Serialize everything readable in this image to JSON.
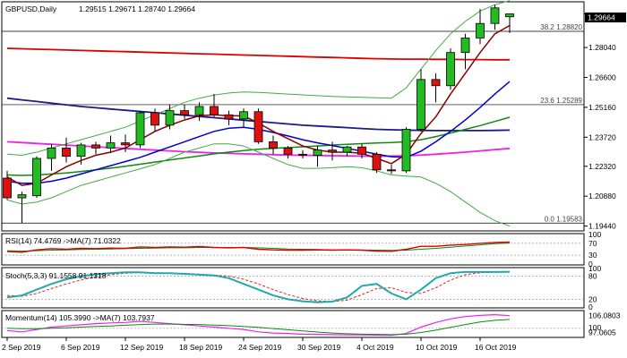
{
  "header": {
    "symbol": "GBPUSD,Daily",
    "ohlc": "1.29515 1.29671 1.28740 1.29664"
  },
  "price_tag": "1.29664",
  "colors": {
    "bull": "#22bb22",
    "bear": "#dd1111",
    "wick": "#000000",
    "ma_red": "#dd0000",
    "ma_blue": "#0000cc",
    "ma_navy": "#1a1a8c",
    "ma_green": "#118811",
    "ma_magenta": "#ee22ee",
    "ma_darkred": "#880000",
    "band": "#44aa44",
    "rsi_ma": "#118811",
    "stoch_main": "#22aaaa",
    "stoch_signal": "#dd2222",
    "mom": "#ee22ee",
    "mom_ma": "#118811",
    "fib_line": "#000000"
  },
  "chart_data": {
    "type": "candlestick",
    "title": "GBPUSD,Daily",
    "ylim": [
      1.1925,
      1.302
    ],
    "y_ticks": [
      1.2966,
      1.2804,
      1.266,
      1.2516,
      1.2372,
      1.2232,
      1.2088,
      1.1944
    ],
    "y_tick_labels": [
      "1.29664",
      "1.28040",
      "1.26600",
      "1.25160",
      "1.23720",
      "1.22320",
      "1.20880",
      "1.19440"
    ],
    "x_ticks": [
      {
        "index": 0,
        "label": "2 Sep 2019"
      },
      {
        "index": 4,
        "label": "6 Sep 2019"
      },
      {
        "index": 8,
        "label": "12 Sep 2019"
      },
      {
        "index": 12,
        "label": "18 Sep 2019"
      },
      {
        "index": 16,
        "label": "24 Sep 2019"
      },
      {
        "index": 20,
        "label": "30 Sep 2019"
      },
      {
        "index": 24,
        "label": "4 Oct 2019"
      },
      {
        "index": 28,
        "label": "10 Oct 2019"
      },
      {
        "index": 32,
        "label": "16 Oct 2019"
      }
    ],
    "candles": [
      {
        "o": 1.2175,
        "h": 1.221,
        "l": 1.207,
        "c": 1.208
      },
      {
        "o": 1.208,
        "h": 1.211,
        "l": 1.1958,
        "c": 1.2095
      },
      {
        "o": 1.209,
        "h": 1.228,
        "l": 1.208,
        "c": 1.227
      },
      {
        "o": 1.227,
        "h": 1.234,
        "l": 1.221,
        "c": 1.232
      },
      {
        "o": 1.232,
        "h": 1.237,
        "l": 1.225,
        "c": 1.228
      },
      {
        "o": 1.228,
        "h": 1.2345,
        "l": 1.224,
        "c": 1.2335
      },
      {
        "o": 1.2335,
        "h": 1.235,
        "l": 1.229,
        "c": 1.232
      },
      {
        "o": 1.232,
        "h": 1.238,
        "l": 1.2295,
        "c": 1.2345
      },
      {
        "o": 1.2345,
        "h": 1.2385,
        "l": 1.23,
        "c": 1.2335
      },
      {
        "o": 1.2335,
        "h": 1.25,
        "l": 1.232,
        "c": 1.249
      },
      {
        "o": 1.249,
        "h": 1.251,
        "l": 1.24,
        "c": 1.243
      },
      {
        "o": 1.243,
        "h": 1.253,
        "l": 1.241,
        "c": 1.25
      },
      {
        "o": 1.25,
        "h": 1.253,
        "l": 1.246,
        "c": 1.248
      },
      {
        "o": 1.248,
        "h": 1.254,
        "l": 1.245,
        "c": 1.252
      },
      {
        "o": 1.252,
        "h": 1.258,
        "l": 1.247,
        "c": 1.248
      },
      {
        "o": 1.248,
        "h": 1.25,
        "l": 1.243,
        "c": 1.246
      },
      {
        "o": 1.246,
        "h": 1.251,
        "l": 1.242,
        "c": 1.2495
      },
      {
        "o": 1.2495,
        "h": 1.251,
        "l": 1.234,
        "c": 1.235
      },
      {
        "o": 1.235,
        "h": 1.238,
        "l": 1.229,
        "c": 1.232
      },
      {
        "o": 1.232,
        "h": 1.233,
        "l": 1.227,
        "c": 1.229
      },
      {
        "o": 1.229,
        "h": 1.231,
        "l": 1.227,
        "c": 1.2285
      },
      {
        "o": 1.2285,
        "h": 1.233,
        "l": 1.223,
        "c": 1.231
      },
      {
        "o": 1.231,
        "h": 1.235,
        "l": 1.226,
        "c": 1.23
      },
      {
        "o": 1.23,
        "h": 1.233,
        "l": 1.228,
        "c": 1.2325
      },
      {
        "o": 1.2325,
        "h": 1.234,
        "l": 1.227,
        "c": 1.229
      },
      {
        "o": 1.229,
        "h": 1.23,
        "l": 1.22,
        "c": 1.2215
      },
      {
        "o": 1.2215,
        "h": 1.224,
        "l": 1.2195,
        "c": 1.221
      },
      {
        "o": 1.221,
        "h": 1.242,
        "l": 1.22,
        "c": 1.241
      },
      {
        "o": 1.241,
        "h": 1.27,
        "l": 1.24,
        "c": 1.265
      },
      {
        "o": 1.265,
        "h": 1.268,
        "l": 1.254,
        "c": 1.262
      },
      {
        "o": 1.262,
        "h": 1.28,
        "l": 1.26,
        "c": 1.278
      },
      {
        "o": 1.278,
        "h": 1.287,
        "l": 1.27,
        "c": 1.285
      },
      {
        "o": 1.285,
        "h": 1.299,
        "l": 1.282,
        "c": 1.292
      },
      {
        "o": 1.292,
        "h": 1.301,
        "l": 1.289,
        "c": 1.2995
      },
      {
        "o": 1.2952,
        "h": 1.2967,
        "l": 1.2874,
        "c": 1.2966
      }
    ],
    "lines": [
      {
        "name": "ma_red",
        "color": "#dd0000",
        "width": 1.8,
        "values": [
          1.28,
          1.2798,
          1.2796,
          1.2794,
          1.2792,
          1.279,
          1.2788,
          1.2786,
          1.2784,
          1.2782,
          1.278,
          1.2778,
          1.2776,
          1.2774,
          1.2772,
          1.277,
          1.2768,
          1.2766,
          1.2764,
          1.2762,
          1.276,
          1.2758,
          1.2756,
          1.2754,
          1.2752,
          1.275,
          1.2749,
          1.2748,
          1.2748,
          1.2747,
          1.2747,
          1.2746,
          1.2746,
          1.2745,
          1.2745
        ]
      },
      {
        "name": "ma_navy",
        "color": "#1a1a8c",
        "width": 1.8,
        "values": [
          1.256,
          1.2552,
          1.2544,
          1.2536,
          1.2528,
          1.252,
          1.2514,
          1.2508,
          1.2502,
          1.2496,
          1.249,
          1.2484,
          1.2478,
          1.2472,
          1.2466,
          1.246,
          1.2454,
          1.2448,
          1.2442,
          1.2436,
          1.243,
          1.2426,
          1.2422,
          1.2418,
          1.2414,
          1.241,
          1.2408,
          1.2406,
          1.2405,
          1.2404,
          1.2404,
          1.2404,
          1.2404,
          1.2405,
          1.2406
        ]
      },
      {
        "name": "ma_magenta",
        "color": "#ee22ee",
        "width": 1.8,
        "values": [
          1.235,
          1.2346,
          1.2342,
          1.2338,
          1.2334,
          1.233,
          1.2326,
          1.2322,
          1.2318,
          1.2314,
          1.231,
          1.2306,
          1.2302,
          1.2299,
          1.2296,
          1.2294,
          1.2292,
          1.229,
          1.2288,
          1.2286,
          1.2285,
          1.2284,
          1.2283,
          1.2282,
          1.2281,
          1.228,
          1.2281,
          1.2283,
          1.2286,
          1.229,
          1.2295,
          1.23,
          1.2306,
          1.2312,
          1.2318
        ]
      },
      {
        "name": "ma_green",
        "color": "#118811",
        "width": 1.5,
        "values": [
          1.219,
          1.2188,
          1.219,
          1.2195,
          1.22,
          1.2207,
          1.2215,
          1.2223,
          1.2232,
          1.2242,
          1.2252,
          1.2262,
          1.2272,
          1.2282,
          1.2292,
          1.23,
          1.2308,
          1.2314,
          1.2318,
          1.2322,
          1.2326,
          1.233,
          1.2334,
          1.2338,
          1.2341,
          1.2344,
          1.2346,
          1.235,
          1.236,
          1.2375,
          1.2392,
          1.241,
          1.2428,
          1.2448,
          1.2468
        ]
      },
      {
        "name": "ma_blue",
        "color": "#0000cc",
        "width": 1.5,
        "values": [
          1.216,
          1.215,
          1.215,
          1.216,
          1.2175,
          1.2195,
          1.2215,
          1.2235,
          1.2255,
          1.2275,
          1.23,
          1.2325,
          1.235,
          1.2375,
          1.24,
          1.2415,
          1.242,
          1.241,
          1.2395,
          1.2378,
          1.236,
          1.2345,
          1.2332,
          1.2318,
          1.2305,
          1.229,
          1.2278,
          1.2275,
          1.2305,
          1.235,
          1.24,
          1.2455,
          1.2515,
          1.258,
          1.264
        ]
      },
      {
        "name": "ma_darkred",
        "color": "#880000",
        "width": 1.5,
        "values": [
          1.218,
          1.214,
          1.215,
          1.219,
          1.223,
          1.226,
          1.2285,
          1.23,
          1.232,
          1.236,
          1.24,
          1.243,
          1.2455,
          1.2475,
          1.248,
          1.2475,
          1.2475,
          1.244,
          1.24,
          1.2365,
          1.233,
          1.231,
          1.23,
          1.23,
          1.2295,
          1.227,
          1.2245,
          1.229,
          1.239,
          1.247,
          1.258,
          1.268,
          1.278,
          1.287,
          1.291
        ]
      },
      {
        "name": "band_upper",
        "color": "#44aa44",
        "width": 1,
        "values": [
          1.229,
          1.2285,
          1.23,
          1.232,
          1.234,
          1.236,
          1.238,
          1.24,
          1.242,
          1.245,
          1.248,
          1.251,
          1.254,
          1.256,
          1.2575,
          1.2585,
          1.259,
          1.2588,
          1.2584,
          1.258,
          1.2576,
          1.2572,
          1.2568,
          1.2566,
          1.2564,
          1.2562,
          1.256,
          1.261,
          1.27,
          1.279,
          1.287,
          1.293,
          1.298,
          1.301,
          1.303
        ]
      },
      {
        "name": "band_lower",
        "color": "#44aa44",
        "width": 1,
        "values": [
          1.207,
          1.205,
          1.206,
          1.208,
          1.211,
          1.214,
          1.216,
          1.218,
          1.22,
          1.222,
          1.224,
          1.227,
          1.23,
          1.232,
          1.234,
          1.234,
          1.233,
          1.23,
          1.227,
          1.224,
          1.2222,
          1.2222,
          1.2225,
          1.223,
          1.2225,
          1.221,
          1.219,
          1.2185,
          1.218,
          1.215,
          1.211,
          1.206,
          1.201,
          1.197,
          1.1944
        ]
      }
    ],
    "fib_levels": [
      {
        "label": "38.2  1.28820",
        "value": 1.2882
      },
      {
        "label": "23.6  1.25289",
        "value": 1.25289
      },
      {
        "label": "0.0  1.19583",
        "value": 1.19583
      }
    ],
    "indicators": {
      "rsi": {
        "label": "RSI(14) 74.4769  ->MA(7) 71.0322",
        "ticks": [
          100,
          70,
          30,
          0
        ],
        "tick_labels": [
          "100",
          "70",
          "30",
          "0"
        ],
        "ylim": [
          0,
          100
        ],
        "values": [
          42,
          40,
          48,
          52,
          50,
          53,
          52,
          54,
          53,
          58,
          56,
          58,
          57,
          59,
          56,
          55,
          56,
          50,
          48,
          47,
          47,
          48,
          47,
          48,
          47,
          44,
          43,
          50,
          60,
          60,
          64,
          66,
          70,
          73,
          74.48
        ],
        "ma": [
          45,
          44,
          45,
          47,
          48,
          49,
          50,
          51,
          52,
          53,
          54,
          55,
          55,
          56,
          56,
          56,
          56,
          55,
          53,
          51,
          50,
          49,
          48,
          48,
          47,
          47,
          46,
          47,
          50,
          53,
          57,
          61,
          65,
          69,
          71.03
        ]
      },
      "stoch": {
        "label": "Stoch(5,3,3) 91.1558 91.1318",
        "ticks": [
          100,
          80,
          20,
          0
        ],
        "tick_labels": [
          "100",
          "80",
          "20",
          "0"
        ],
        "ylim": [
          0,
          100
        ],
        "main": [
          25,
          30,
          45,
          60,
          72,
          80,
          85,
          88,
          90,
          90,
          88,
          88,
          86,
          84,
          82,
          75,
          60,
          45,
          30,
          20,
          15,
          12,
          14,
          25,
          55,
          60,
          35,
          20,
          45,
          75,
          88,
          91,
          91,
          91,
          91.16
        ],
        "signal": [
          30,
          28,
          35,
          48,
          60,
          70,
          78,
          84,
          88,
          89,
          89,
          88,
          87,
          85,
          83,
          80,
          72,
          60,
          45,
          32,
          22,
          16,
          14,
          18,
          32,
          48,
          50,
          38,
          35,
          50,
          70,
          84,
          89,
          91,
          91.13
        ]
      },
      "momentum": {
        "label": "Momentum(14) 105.3990  ->MA(7) 103.7937",
        "ticks_labels_right": [
          "106.0803",
          "100",
          "97.0605"
        ],
        "ylim": [
          96.5,
          106.8
        ],
        "values": [
          99,
          98.5,
          99.5,
          100.5,
          101,
          101.5,
          102,
          102.3,
          102.5,
          103,
          102.5,
          102,
          101.5,
          101,
          100.5,
          100,
          99.5,
          98.5,
          98,
          97.8,
          97.5,
          97.4,
          97.3,
          97.2,
          97.2,
          97.1,
          97.05,
          97.8,
          100.5,
          102.5,
          104,
          105,
          105.5,
          105.8,
          105.4
        ],
        "ma": [
          100,
          99.8,
          99.8,
          100,
          100.2,
          100.5,
          100.8,
          101,
          101.3,
          101.6,
          101.8,
          101.8,
          101.7,
          101.6,
          101.4,
          101.1,
          100.8,
          100.4,
          99.9,
          99.4,
          98.9,
          98.4,
          98.0,
          97.7,
          97.5,
          97.4,
          97.3,
          97.5,
          98.2,
          99.2,
          100.4,
          101.6,
          102.7,
          103.4,
          103.79
        ]
      }
    }
  }
}
